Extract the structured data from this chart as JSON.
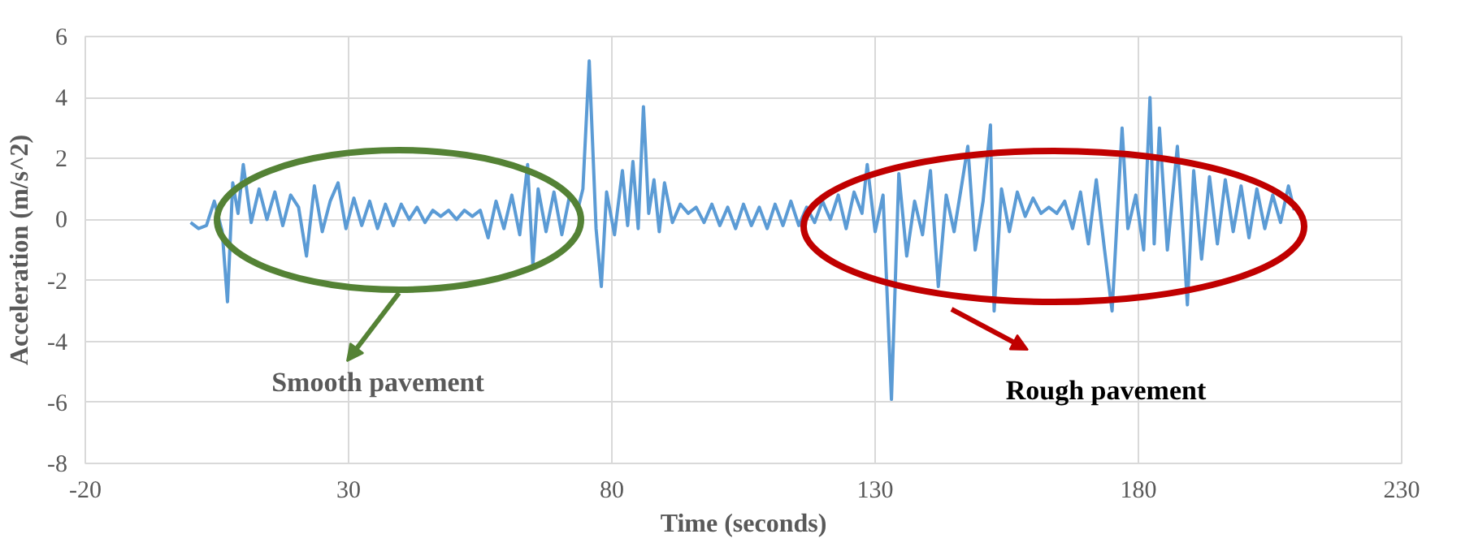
{
  "chart_data": {
    "type": "line",
    "xlabel": "Time (seconds)",
    "ylabel": "Acceleration (m/s^2)",
    "xlim": [
      -20,
      230
    ],
    "xticks": [
      -20,
      30,
      80,
      130,
      180,
      230
    ],
    "ylim": [
      -8,
      6
    ],
    "yticks": [
      -8,
      -6,
      -4,
      -2,
      0,
      2,
      4,
      6
    ],
    "grid": true,
    "marker": "none",
    "line_style": "solid",
    "annotations": [
      "Smooth pavement",
      "Rough pavement"
    ],
    "series": [
      {
        "color": "#5b9bd5",
        "x": [
          0,
          1.5,
          3,
          4.5,
          6,
          7,
          8,
          9,
          10,
          11.5,
          13,
          14.5,
          16,
          17.5,
          19,
          20.5,
          22,
          23.5,
          25,
          26.5,
          28,
          29.5,
          31,
          32.5,
          34,
          35.5,
          37,
          38.5,
          40,
          41.5,
          43,
          44.5,
          46,
          47.5,
          49,
          50.5,
          52,
          53.5,
          55,
          56.5,
          58,
          59.5,
          61,
          62.5,
          64,
          65,
          66,
          67.5,
          69,
          70.5,
          72,
          73.5,
          74.5,
          75.7,
          77,
          78,
          79,
          80.5,
          82,
          83,
          84,
          85,
          86,
          87,
          88,
          89,
          90,
          91.5,
          93,
          94.5,
          96,
          97.5,
          99,
          100.5,
          102,
          103.5,
          105,
          106.5,
          108,
          109.5,
          111,
          112.5,
          114,
          115.5,
          117,
          118.5,
          120,
          121.5,
          123,
          124.5,
          126,
          127.5,
          128.5,
          130,
          131.5,
          133.1,
          134.5,
          136,
          137.5,
          139,
          140.5,
          142,
          143.5,
          145,
          146.5,
          147.6,
          149,
          150.5,
          151.9,
          152.6,
          154,
          155.5,
          157,
          158.5,
          160,
          161.5,
          163,
          164.5,
          166,
          167.5,
          169,
          170.5,
          172,
          173.5,
          175,
          176.9,
          178,
          179.5,
          181,
          182.2,
          183,
          184,
          185.5,
          187.4,
          188.5,
          189.3,
          190.5,
          192,
          193.5,
          195,
          196.5,
          198,
          199.5,
          201,
          202.5,
          204,
          205.5,
          207,
          208.5,
          209.6
        ],
        "values": [
          -0.1,
          -0.3,
          -0.2,
          0.6,
          -0.4,
          -2.7,
          1.2,
          0.2,
          1.8,
          -0.1,
          1.0,
          0.0,
          0.9,
          -0.2,
          0.8,
          0.4,
          -1.2,
          1.1,
          -0.4,
          0.6,
          1.2,
          -0.3,
          0.7,
          -0.2,
          0.6,
          -0.3,
          0.5,
          -0.2,
          0.5,
          0.0,
          0.4,
          -0.1,
          0.3,
          0.1,
          0.3,
          0.0,
          0.3,
          0.1,
          0.3,
          -0.6,
          0.6,
          -0.3,
          0.8,
          -0.5,
          1.8,
          -1.5,
          1.0,
          -0.4,
          0.9,
          -0.5,
          0.8,
          0.3,
          1.0,
          5.2,
          -0.3,
          -2.2,
          0.9,
          -0.5,
          1.6,
          -0.2,
          1.9,
          -0.3,
          3.7,
          0.2,
          1.3,
          -0.4,
          1.2,
          -0.1,
          0.5,
          0.2,
          0.4,
          -0.1,
          0.5,
          -0.2,
          0.4,
          -0.3,
          0.5,
          -0.2,
          0.4,
          -0.3,
          0.5,
          -0.2,
          0.6,
          -0.2,
          0.4,
          -0.1,
          0.6,
          0.0,
          0.8,
          -0.3,
          0.9,
          0.2,
          1.8,
          -0.4,
          0.8,
          -5.9,
          1.5,
          -1.2,
          0.6,
          -0.5,
          1.6,
          -2.2,
          0.8,
          -0.4,
          1.2,
          2.4,
          -1.0,
          0.6,
          3.1,
          -3.0,
          1.0,
          -0.4,
          0.9,
          0.1,
          0.7,
          0.2,
          0.4,
          0.2,
          0.6,
          -0.3,
          0.9,
          -0.8,
          1.3,
          -0.9,
          -3.0,
          3.0,
          -0.3,
          0.8,
          -1.0,
          4.0,
          -0.8,
          3.0,
          -1.0,
          2.4,
          -0.5,
          -2.8,
          1.6,
          -1.3,
          1.4,
          -0.8,
          1.3,
          -0.4,
          1.1,
          -0.6,
          1.0,
          -0.3,
          0.8,
          -0.1,
          1.1,
          0.3
        ]
      }
    ]
  }
}
